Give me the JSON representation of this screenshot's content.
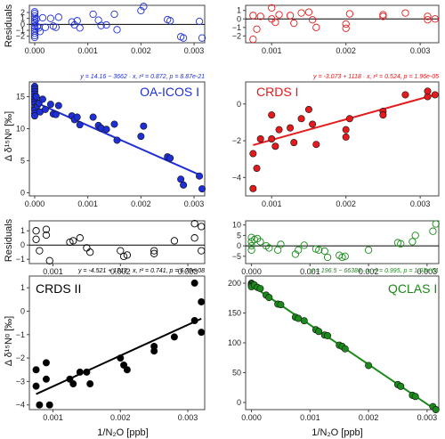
{
  "shared": {
    "residuals_label": "Residuals",
    "y_label": "Δ δ¹⁵Nᵅ [‰]",
    "x_label": "1/N₂O [ppb]"
  },
  "chart_data": [
    {
      "id": "oa",
      "type": "scatter",
      "name": "OA-ICOS I",
      "color": "#1f2fd6",
      "equation": "y = 14.16 − 3662 · x,  r² = 0.872,  p = 8.87e-21",
      "fit": {
        "intercept": 14.16,
        "slope": -3662
      },
      "xlim": [
        -0.0001,
        0.0032
      ],
      "ylim": [
        -0.5,
        17.3
      ],
      "xticks": [
        0.0,
        0.001,
        0.002,
        0.003
      ],
      "xtick_labels": [
        "0.000",
        "0.001",
        "0.002",
        "0.003"
      ],
      "yticks": [
        0,
        5,
        10,
        15
      ],
      "ytick_labels": [
        "0",
        "5",
        "10",
        "15"
      ],
      "res_ylim": [
        -3.1,
        3.2
      ],
      "res_yticks": [
        -2,
        -1,
        0,
        1,
        2
      ],
      "res_ytick_labels": [
        "−2",
        "−1",
        "0",
        "1",
        "2"
      ],
      "points": [
        [
          0.0,
          16.6
        ],
        [
          0.0,
          16.2
        ],
        [
          0.0,
          15.8
        ],
        [
          0.0,
          15.4
        ],
        [
          0.0,
          15.0
        ],
        [
          0.0,
          14.6
        ],
        [
          0.0,
          14.2
        ],
        [
          0.0,
          13.8
        ],
        [
          0.0,
          13.3
        ],
        [
          0.0,
          12.9
        ],
        [
          0.0,
          12.4
        ],
        [
          0.0,
          12.0
        ],
        [
          3e-05,
          15.0
        ],
        [
          5e-05,
          13.6
        ],
        [
          8e-05,
          14.0
        ],
        [
          0.0001,
          12.6
        ],
        [
          0.00015,
          14.6
        ],
        [
          0.0002,
          13.0
        ],
        [
          0.0003,
          13.8
        ],
        [
          0.00035,
          12.3
        ],
        [
          0.0004,
          12.2
        ],
        [
          0.00045,
          13.6
        ],
        [
          0.0007,
          12.0
        ],
        [
          0.00075,
          11.4
        ],
        [
          0.0008,
          11.8
        ],
        [
          0.00085,
          10.6
        ],
        [
          0.0011,
          11.8
        ],
        [
          0.0012,
          10.5
        ],
        [
          0.00125,
          10.1
        ],
        [
          0.00135,
          9.9
        ],
        [
          0.0015,
          10.7
        ],
        [
          0.00155,
          8.2
        ],
        [
          0.002,
          8.8
        ],
        [
          0.00205,
          10.4
        ],
        [
          0.0025,
          5.6
        ],
        [
          0.00255,
          5.4
        ],
        [
          0.00275,
          2.1
        ],
        [
          0.0028,
          1.2
        ],
        [
          0.0031,
          2.6
        ],
        [
          0.00315,
          0.6
        ]
      ],
      "residuals": [
        [
          0.0,
          2.1
        ],
        [
          0.0,
          1.8
        ],
        [
          0.0,
          1.4
        ],
        [
          0.0,
          1.0
        ],
        [
          0.0,
          0.6
        ],
        [
          0.0,
          0.2
        ],
        [
          0.0,
          -0.3
        ],
        [
          0.0,
          -0.7
        ],
        [
          0.0,
          -1.1
        ],
        [
          0.0,
          -1.5
        ],
        [
          0.0,
          -1.9
        ],
        [
          0.0,
          -2.2
        ],
        [
          3e-05,
          0.9
        ],
        [
          5e-05,
          -0.4
        ],
        [
          8e-05,
          -0.6
        ],
        [
          0.0001,
          -1.2
        ],
        [
          0.00015,
          1.1
        ],
        [
          0.0002,
          -0.5
        ],
        [
          0.0003,
          1.0
        ],
        [
          0.00035,
          -0.3
        ],
        [
          0.0004,
          -0.5
        ],
        [
          0.00045,
          1.2
        ],
        [
          0.0007,
          0.4
        ],
        [
          0.00075,
          -0.1
        ],
        [
          0.0008,
          0.6
        ],
        [
          0.00085,
          -0.6
        ],
        [
          0.0011,
          1.7
        ],
        [
          0.0012,
          0.7
        ],
        [
          0.00125,
          -0.2
        ],
        [
          0.00135,
          -0.1
        ],
        [
          0.0015,
          1.7
        ],
        [
          0.00155,
          -0.9
        ],
        [
          0.002,
          2.3
        ],
        [
          0.00205,
          3.0
        ],
        [
          0.0025,
          0.8
        ],
        [
          0.00255,
          0.6
        ],
        [
          0.00275,
          -2.1
        ],
        [
          0.0028,
          -2.3
        ],
        [
          0.0031,
          0.5
        ],
        [
          0.00315,
          -2.3
        ]
      ]
    },
    {
      "id": "crds1",
      "type": "scatter",
      "name": "CRDS I",
      "color": "#e41a1c",
      "equation": "y = -3.073 + 1118 · x,  r² = 0.524,  p = 1.96e-05",
      "fit": {
        "intercept": -3.073,
        "slope": 1118
      },
      "xlim": [
        0.00065,
        0.00325
      ],
      "ylim": [
        -5.0,
        1.2
      ],
      "xticks": [
        0.001,
        0.002,
        0.003
      ],
      "xtick_labels": [
        "0.001",
        "0.002",
        "0.003"
      ],
      "yticks": [
        -4,
        -2,
        0
      ],
      "ytick_labels": [
        "−4",
        "−2",
        "0"
      ],
      "res_ylim": [
        -2.8,
        1.6
      ],
      "res_yticks": [
        -2,
        -1,
        0,
        1
      ],
      "res_ytick_labels": [
        "−2",
        "−1",
        "0",
        "1"
      ],
      "points": [
        [
          0.00075,
          -2.7
        ],
        [
          0.00075,
          -4.6
        ],
        [
          0.0008,
          -3.5
        ],
        [
          0.00085,
          -1.9
        ],
        [
          0.001,
          -0.6
        ],
        [
          0.001,
          -1.9
        ],
        [
          0.00105,
          -2.3
        ],
        [
          0.0011,
          -1.4
        ],
        [
          0.00125,
          -1.3
        ],
        [
          0.0013,
          -2.1
        ],
        [
          0.0014,
          -0.8
        ],
        [
          0.0015,
          -0.3
        ],
        [
          0.00155,
          -1.1
        ],
        [
          0.0016,
          -2.2
        ],
        [
          0.002,
          -1.4
        ],
        [
          0.002,
          -1.8
        ],
        [
          0.00205,
          -0.8
        ],
        [
          0.0025,
          -0.4
        ],
        [
          0.0025,
          -0.6
        ],
        [
          0.0028,
          0.5
        ],
        [
          0.0031,
          0.4
        ],
        [
          0.0031,
          0.7
        ],
        [
          0.0032,
          0.5
        ]
      ],
      "residuals": [
        [
          0.00075,
          0.4
        ],
        [
          0.00075,
          -2.4
        ],
        [
          0.0008,
          -1.2
        ],
        [
          0.00085,
          0.3
        ],
        [
          0.001,
          1.3
        ],
        [
          0.001,
          0.0
        ],
        [
          0.00105,
          -0.4
        ],
        [
          0.0011,
          0.5
        ],
        [
          0.00125,
          0.4
        ],
        [
          0.0013,
          -0.5
        ],
        [
          0.0014,
          0.7
        ],
        [
          0.0015,
          0.8
        ],
        [
          0.00155,
          -0.1
        ],
        [
          0.0016,
          -1.0
        ],
        [
          0.002,
          -1.1
        ],
        [
          0.002,
          -0.6
        ],
        [
          0.00205,
          0.6
        ],
        [
          0.0025,
          0.5
        ],
        [
          0.0025,
          0.3
        ],
        [
          0.0028,
          0.7
        ],
        [
          0.0031,
          -0.1
        ],
        [
          0.0031,
          0.3
        ],
        [
          0.0032,
          0.0
        ]
      ]
    },
    {
      "id": "crds2",
      "type": "scatter",
      "name": "CRDS II",
      "color": "#000000",
      "equation": "y = -4.521 + 1313 · x,  r² = 0.741,  p = 6.79e-08",
      "fit": {
        "intercept": -4.521,
        "slope": 1313
      },
      "xlim": [
        0.00065,
        0.00325
      ],
      "ylim": [
        -4.2,
        1.5
      ],
      "xticks": [
        0.001,
        0.002,
        0.003
      ],
      "xtick_labels": [
        "0.001",
        "0.002",
        "0.003"
      ],
      "yticks": [
        -4,
        -3,
        -2,
        -1,
        0,
        1
      ],
      "ytick_labels": [
        "−4",
        "−3",
        "−2",
        "−1",
        "0",
        "1"
      ],
      "res_ylim": [
        -1.3,
        1.7
      ],
      "res_yticks": [
        -1,
        0,
        1
      ],
      "res_ytick_labels": [
        "−1",
        "0",
        "1"
      ],
      "points": [
        [
          0.00075,
          -2.5
        ],
        [
          0.00075,
          -3.2
        ],
        [
          0.0008,
          -4.0
        ],
        [
          0.0009,
          -2.2
        ],
        [
          0.0009,
          -2.9
        ],
        [
          0.00095,
          -4.0
        ],
        [
          0.00125,
          -2.9
        ],
        [
          0.0013,
          -3.1
        ],
        [
          0.0014,
          -2.6
        ],
        [
          0.0015,
          -2.6
        ],
        [
          0.00155,
          -3.1
        ],
        [
          0.002,
          -2.0
        ],
        [
          0.00205,
          -2.3
        ],
        [
          0.0021,
          -2.5
        ],
        [
          0.0025,
          -1.5
        ],
        [
          0.0025,
          -1.7
        ],
        [
          0.0028,
          -1.1
        ],
        [
          0.0031,
          -0.4
        ],
        [
          0.0031,
          1.2
        ],
        [
          0.0032,
          0.4
        ],
        [
          0.0032,
          -0.9
        ]
      ],
      "residuals": [
        [
          0.00075,
          1.0
        ],
        [
          0.00075,
          0.4
        ],
        [
          0.0008,
          -0.4
        ],
        [
          0.0009,
          1.1
        ],
        [
          0.0009,
          0.7
        ],
        [
          0.00095,
          -1.1
        ],
        [
          0.00125,
          0.2
        ],
        [
          0.0013,
          0.3
        ],
        [
          0.0014,
          0.5
        ],
        [
          0.0015,
          -0.2
        ],
        [
          0.00155,
          -0.5
        ],
        [
          0.002,
          -0.4
        ],
        [
          0.00205,
          -0.8
        ],
        [
          0.0021,
          -0.7
        ],
        [
          0.0025,
          -0.4
        ],
        [
          0.0025,
          -0.6
        ],
        [
          0.0028,
          0.3
        ],
        [
          0.0031,
          0.5
        ],
        [
          0.0031,
          1.5
        ],
        [
          0.0032,
          1.3
        ],
        [
          0.0032,
          -0.4
        ]
      ]
    },
    {
      "id": "qclas",
      "type": "scatter",
      "name": "QCLAS I",
      "color": "#1a8a1a",
      "equation": "y = 196.5 − 66386 · x,  r² = 0.995,  p = 1.03e-51",
      "fit": {
        "intercept": 196.5,
        "slope": -66386
      },
      "xlim": [
        -0.0001,
        0.0032
      ],
      "ylim": [
        -12,
        212
      ],
      "xticks": [
        0.0,
        0.001,
        0.002,
        0.003
      ],
      "xtick_labels": [
        "0.000",
        "0.001",
        "0.002",
        "0.003"
      ],
      "yticks": [
        0,
        50,
        100,
        150,
        200
      ],
      "ytick_labels": [
        "0",
        "50",
        "100",
        "150",
        "200"
      ],
      "res_ylim": [
        -8.5,
        12
      ],
      "res_yticks": [
        -5,
        0,
        5,
        10
      ],
      "res_ytick_labels": [
        "−5",
        "0",
        "5",
        "10"
      ],
      "points": [
        [
          0.0,
          200
        ],
        [
          0.0,
          198
        ],
        [
          0.0,
          196
        ],
        [
          0.0,
          194
        ],
        [
          5e-05,
          197
        ],
        [
          0.0001,
          193
        ],
        [
          0.00015,
          191
        ],
        [
          0.00025,
          180
        ],
        [
          0.0003,
          176
        ],
        [
          0.00045,
          165
        ],
        [
          0.0005,
          164
        ],
        [
          0.00075,
          143
        ],
        [
          0.0008,
          141
        ],
        [
          0.0009,
          137
        ],
        [
          0.0011,
          122
        ],
        [
          0.00115,
          119
        ],
        [
          0.00125,
          113
        ],
        [
          0.0013,
          112
        ],
        [
          0.0015,
          96
        ],
        [
          0.00155,
          94
        ],
        [
          0.0016,
          90
        ],
        [
          0.002,
          62
        ],
        [
          0.0025,
          30
        ],
        [
          0.00255,
          27
        ],
        [
          0.00275,
          12
        ],
        [
          0.0028,
          10
        ],
        [
          0.0031,
          -7
        ],
        [
          0.00315,
          -12
        ]
      ],
      "residuals": [
        [
          0.0,
          4.0
        ],
        [
          0.0,
          2.0
        ],
        [
          0.0,
          0.0
        ],
        [
          0.0,
          -2.0
        ],
        [
          5e-05,
          3.0
        ],
        [
          0.0001,
          3.5
        ],
        [
          0.00015,
          2.0
        ],
        [
          0.00025,
          0.0
        ],
        [
          0.0003,
          -1.0
        ],
        [
          0.00045,
          -2.0
        ],
        [
          0.0005,
          0.7
        ],
        [
          0.00075,
          -4.0
        ],
        [
          0.0008,
          -2.0
        ],
        [
          0.0009,
          0.3
        ],
        [
          0.0011,
          -1.5
        ],
        [
          0.00115,
          -2.0
        ],
        [
          0.00125,
          -2.5
        ],
        [
          0.0013,
          -5.5
        ],
        [
          0.0015,
          -4.5
        ],
        [
          0.00155,
          -5.5
        ],
        [
          0.0016,
          -5.0
        ],
        [
          0.002,
          -2.0
        ],
        [
          0.0025,
          1.5
        ],
        [
          0.00255,
          1.0
        ],
        [
          0.00275,
          2.0
        ],
        [
          0.0028,
          5.0
        ],
        [
          0.0031,
          7.0
        ],
        [
          0.00315,
          10.5
        ]
      ]
    }
  ]
}
